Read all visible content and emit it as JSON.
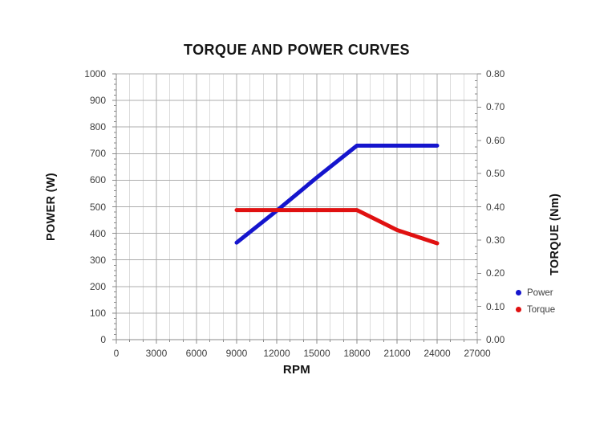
{
  "chart_data": {
    "type": "line",
    "title": "TORQUE AND POWER CURVES",
    "xlabel": "RPM",
    "ylabel_left": "POWER (W)",
    "ylabel_right": "TORQUE (Nm)",
    "x_axis": {
      "min": 0,
      "max": 27000,
      "major_step": 3000,
      "minor_step": 1000,
      "tick_labels": [
        "0",
        "3000",
        "6000",
        "9000",
        "12000",
        "15000",
        "18000",
        "21000",
        "24000",
        "27000"
      ]
    },
    "y_left": {
      "min": 0,
      "max": 1000,
      "major_step": 100,
      "minor_step": 20,
      "tick_labels": [
        "0",
        "100",
        "200",
        "300",
        "400",
        "500",
        "600",
        "700",
        "800",
        "900",
        "1000"
      ]
    },
    "y_right": {
      "min": 0,
      "max": 0.8,
      "major_step": 0.1,
      "minor_step": 0.02,
      "tick_labels": [
        "0.00",
        "0.10",
        "0.20",
        "0.30",
        "0.40",
        "0.50",
        "0.60",
        "0.70",
        "0.80"
      ]
    },
    "grid": {
      "minor_color": "#dcdcdc",
      "major_color": "#acacac",
      "axis_color": "#8a8a8a",
      "grid_on": true
    },
    "series": [
      {
        "name": "Power",
        "axis": "left",
        "color": "#1515cd",
        "points": [
          [
            9000,
            365
          ],
          [
            12000,
            485
          ],
          [
            15000,
            610
          ],
          [
            18000,
            730
          ],
          [
            21000,
            730
          ],
          [
            24000,
            730
          ]
        ]
      },
      {
        "name": "Torque",
        "axis": "right",
        "color": "#e01111",
        "points": [
          [
            9000,
            0.39
          ],
          [
            12000,
            0.39
          ],
          [
            15000,
            0.39
          ],
          [
            18000,
            0.39
          ],
          [
            19500,
            0.36
          ],
          [
            21000,
            0.33
          ],
          [
            22500,
            0.31
          ],
          [
            24000,
            0.29
          ]
        ]
      }
    ],
    "legend": {
      "position": "right",
      "entries": [
        "Power",
        "Torque"
      ]
    }
  }
}
